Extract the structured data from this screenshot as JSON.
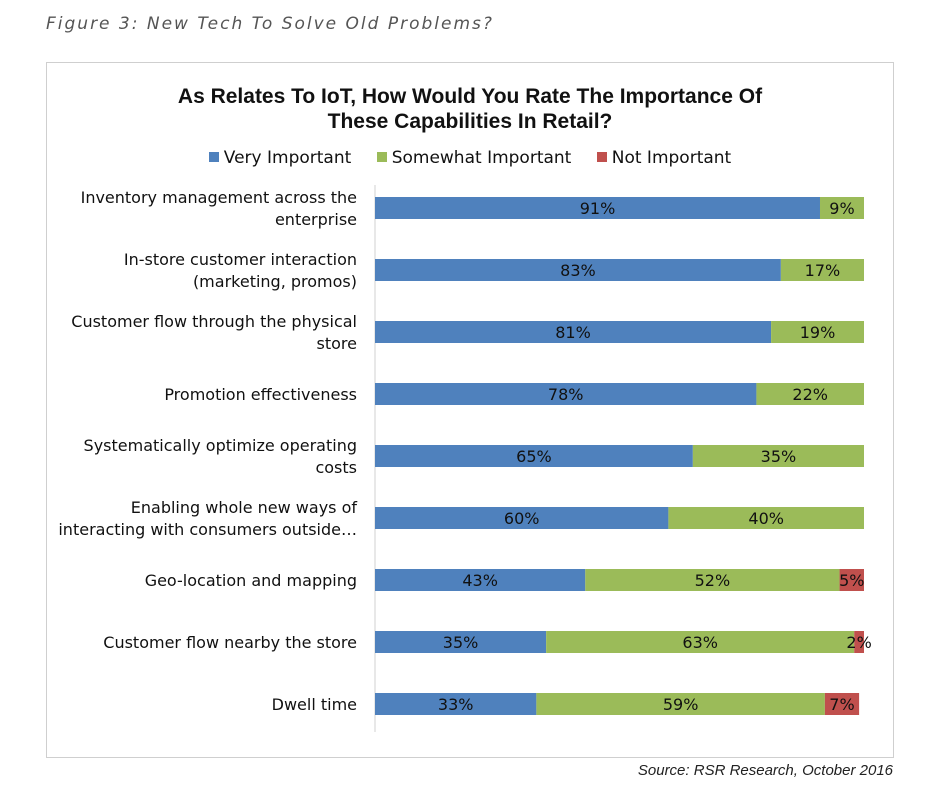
{
  "figure_caption": "Figure 3: New Tech To Solve Old Problems?",
  "source": "Source: RSR Research, October 2016",
  "colors": {
    "very_important": "#4f81bd",
    "somewhat_important": "#9bbb59",
    "not_important": "#c0504d"
  },
  "chart_data": {
    "type": "bar",
    "orientation": "horizontal",
    "stacked": true,
    "title_line1": "As Relates To IoT, How Would You Rate The Importance Of",
    "title_line2": "These Capabilities In Retail?",
    "legend_position": "top",
    "grid": false,
    "xlim": [
      0,
      100
    ],
    "categories": [
      [
        "Inventory management across the",
        "enterprise"
      ],
      [
        "In-store customer interaction",
        "(marketing, promos)"
      ],
      [
        "Customer flow through the physical",
        "store"
      ],
      [
        "Promotion effectiveness"
      ],
      [
        "Systematically optimize operating",
        "costs"
      ],
      [
        "Enabling whole new ways of",
        "interacting with consumers outside…"
      ],
      [
        "Geo-location and mapping"
      ],
      [
        "Customer flow nearby the store"
      ],
      [
        "Dwell time"
      ]
    ],
    "series": [
      {
        "name": "Very Important",
        "values": [
          91,
          83,
          81,
          78,
          65,
          60,
          43,
          35,
          33
        ]
      },
      {
        "name": "Somewhat Important",
        "values": [
          9,
          17,
          19,
          22,
          35,
          40,
          52,
          63,
          59
        ]
      },
      {
        "name": "Not Important",
        "values": [
          0,
          0,
          0,
          0,
          0,
          0,
          5,
          2,
          7
        ]
      }
    ]
  }
}
